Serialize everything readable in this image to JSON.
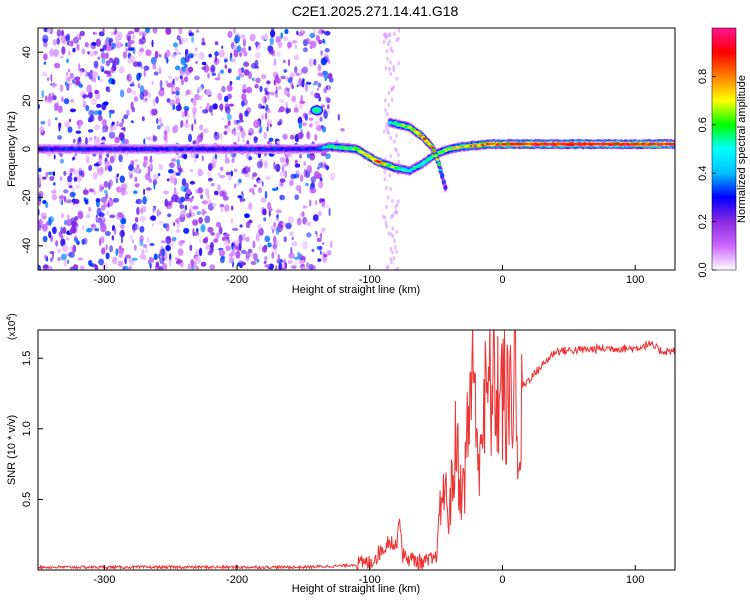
{
  "title": "C2E1.2025.271.14.41.G18",
  "chart_data": [
    {
      "type": "heatmap",
      "name": "spectrogram",
      "xlabel": "Height of straight line (km)",
      "ylabel": "Frequency (Hz)",
      "xlim": [
        -350,
        130
      ],
      "ylim": [
        -50,
        50
      ],
      "x_ticks": [
        -300,
        -200,
        -100,
        0,
        100
      ],
      "x_tick_labels": [
        "-300",
        "-200",
        "-100",
        "0",
        "100"
      ],
      "y_ticks": [
        -40,
        -20,
        0,
        20,
        40
      ],
      "y_tick_labels": [
        "-40",
        "-20",
        "0",
        "20",
        "40"
      ],
      "colorbar": {
        "label": "Normalized spectral amplitude",
        "range": [
          0,
          1
        ],
        "ticks": [
          0.0,
          0.2,
          0.4,
          0.6,
          0.8
        ],
        "tick_labels": [
          "0.0",
          "0.2",
          "0.4",
          "0.6",
          "0.8"
        ],
        "colormap": [
          "#ffffff",
          "#cc66ff",
          "#8a2be2",
          "#0000ff",
          "#00bfff",
          "#00ffff",
          "#00ff00",
          "#ffff00",
          "#ff8000",
          "#ff0000",
          "#ff1493"
        ]
      },
      "noise_region_x": [
        -350,
        -130
      ],
      "ridge": [
        {
          "x": -350,
          "y": 0,
          "amp": 0.3
        },
        {
          "x": -200,
          "y": 0,
          "amp": 0.3
        },
        {
          "x": -140,
          "y": 0,
          "amp": 0.3
        },
        {
          "x": -130,
          "y": 1,
          "amp": 0.55
        },
        {
          "x": -110,
          "y": 0,
          "amp": 0.65
        },
        {
          "x": -95,
          "y": -5,
          "amp": 0.85
        },
        {
          "x": -80,
          "y": -8,
          "amp": 0.6
        },
        {
          "x": -70,
          "y": -9,
          "amp": 0.5
        },
        {
          "x": -60,
          "y": -6,
          "amp": 0.55
        },
        {
          "x": -50,
          "y": -2,
          "amp": 0.6
        },
        {
          "x": -40,
          "y": 0,
          "amp": 0.65
        },
        {
          "x": -30,
          "y": 1,
          "amp": 0.7
        },
        {
          "x": -10,
          "y": 2,
          "amp": 0.85
        },
        {
          "x": 20,
          "y": 2,
          "amp": 0.95
        },
        {
          "x": 60,
          "y": 2,
          "amp": 1.0
        },
        {
          "x": 100,
          "y": 2,
          "amp": 0.95
        },
        {
          "x": 130,
          "y": 2,
          "amp": 0.9
        }
      ],
      "secondary_ridge": [
        {
          "x": -85,
          "y": 11,
          "amp": 0.5
        },
        {
          "x": -70,
          "y": 9,
          "amp": 0.7
        },
        {
          "x": -60,
          "y": 5,
          "amp": 0.8
        },
        {
          "x": -52,
          "y": 0,
          "amp": 0.75
        },
        {
          "x": -48,
          "y": -6,
          "amp": 0.6
        },
        {
          "x": -45,
          "y": -12,
          "amp": 0.35
        },
        {
          "x": -42,
          "y": -18,
          "amp": 0.25
        }
      ],
      "isolated_blobs": [
        {
          "x": -140,
          "y": 16,
          "amp": 0.55
        }
      ]
    },
    {
      "type": "line",
      "name": "snr",
      "xlabel": "Height of straight line (km)",
      "ylabel": "SNR (10 * v/v)",
      "y_scale_label": "(x10",
      "y_scale_exponent": "4",
      "y_scale_suffix": ")",
      "xlim": [
        -350,
        130
      ],
      "ylim": [
        0,
        1.7
      ],
      "x_ticks": [
        -300,
        -200,
        -100,
        0,
        100
      ],
      "x_tick_labels": [
        "-300",
        "-200",
        "-100",
        "0",
        "100"
      ],
      "y_ticks": [
        0.5,
        1.0,
        1.5
      ],
      "y_tick_labels": [
        "0.5",
        "1.0",
        "1.5"
      ],
      "color": "#ee3333",
      "series": [
        {
          "name": "SNR",
          "x": [
            -350,
            -150,
            -120,
            -100,
            -90,
            -85,
            -80,
            -78,
            -75,
            -70,
            -60,
            -50,
            -45,
            -40,
            -35,
            -30,
            -25,
            -22,
            -20,
            -15,
            -10,
            0,
            5,
            10,
            12,
            15,
            20,
            30,
            40,
            60,
            80,
            100,
            110,
            120,
            130
          ],
          "y": [
            0.02,
            0.02,
            0.03,
            0.05,
            0.15,
            0.22,
            0.15,
            0.4,
            0.1,
            0.08,
            0.05,
            0.08,
            0.6,
            0.4,
            0.9,
            0.5,
            1.1,
            1.7,
            0.8,
            1.05,
            1.3,
            1.25,
            1.1,
            1.65,
            0.5,
            1.3,
            1.35,
            1.45,
            1.55,
            1.56,
            1.57,
            1.57,
            1.6,
            1.55,
            1.55
          ]
        }
      ]
    }
  ]
}
